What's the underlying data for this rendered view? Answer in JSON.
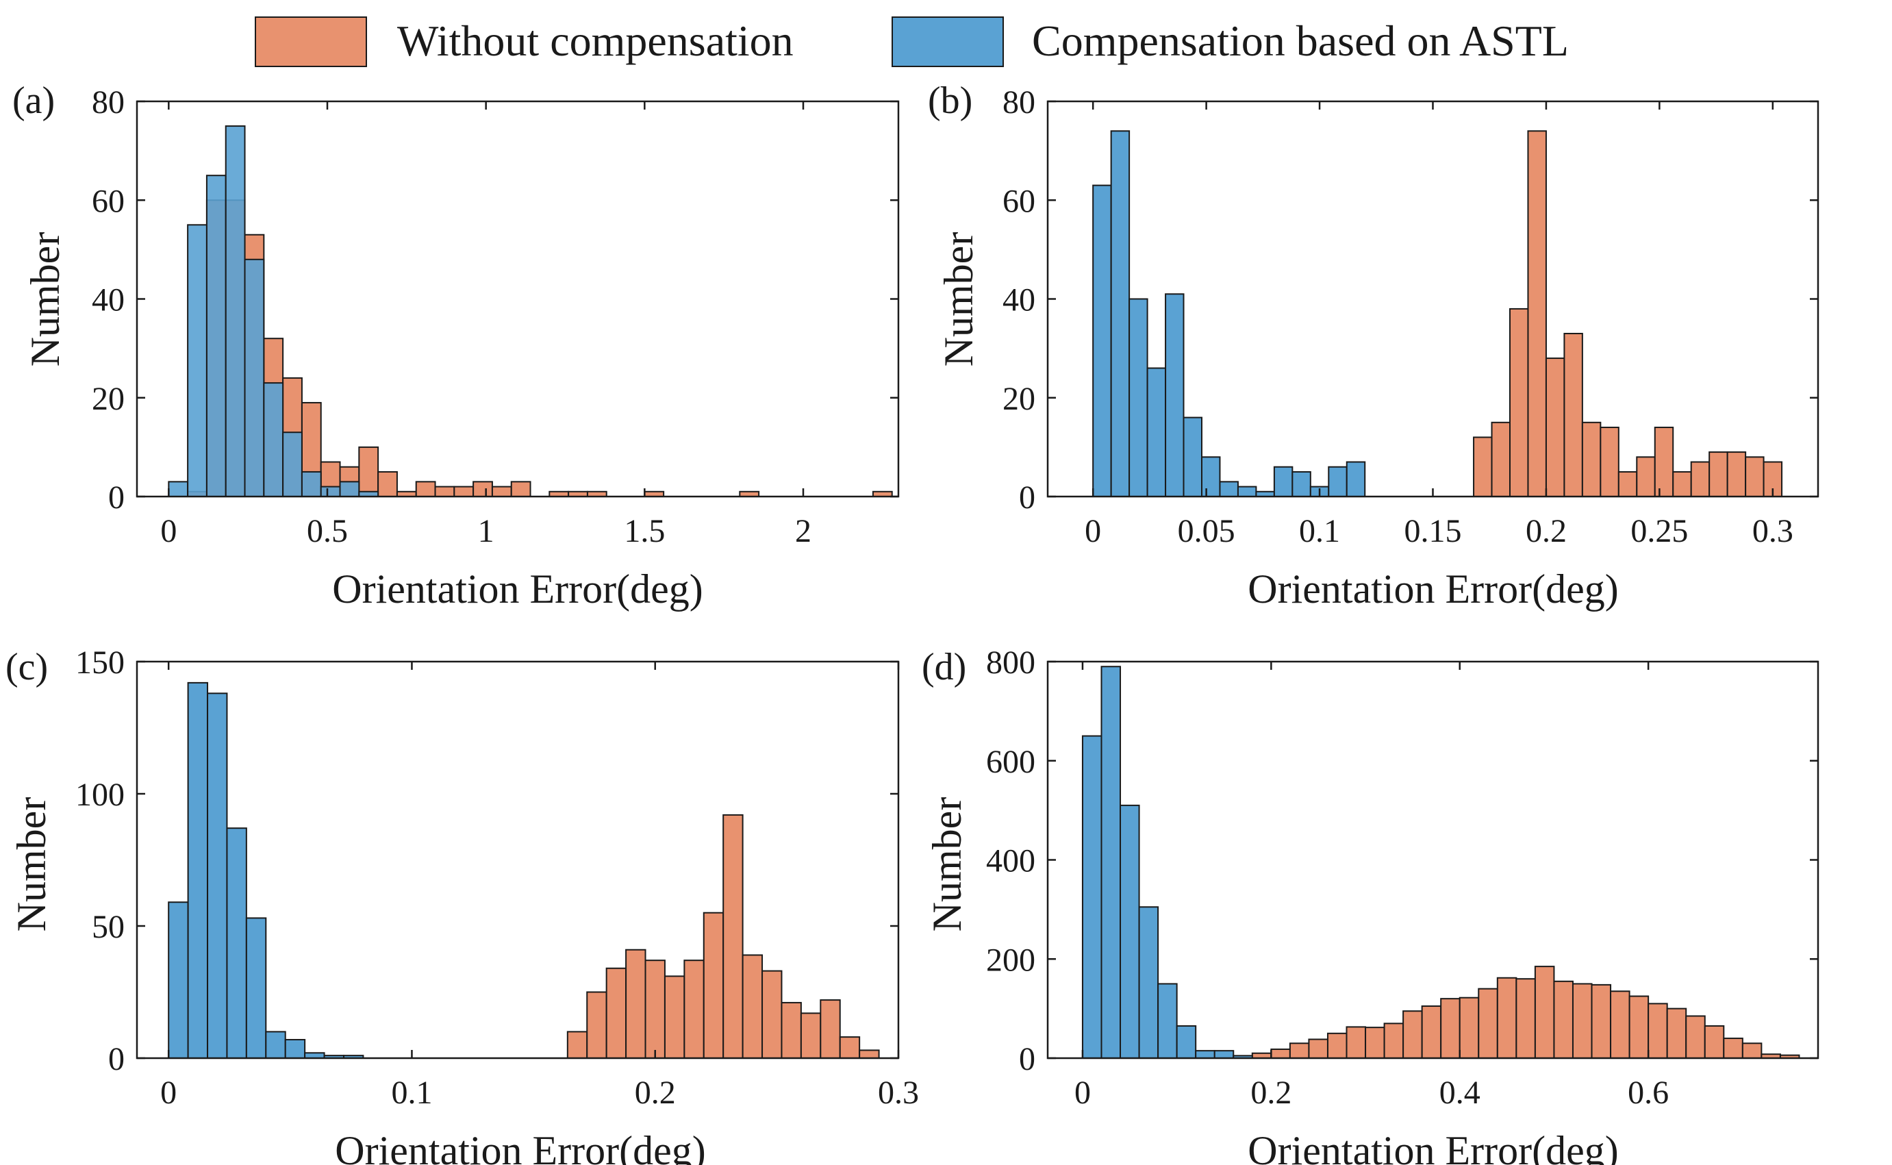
{
  "legend": {
    "location": "top-center",
    "entries": [
      {
        "label": "Without compensation",
        "color": "#E8926F"
      },
      {
        "label": "Compensation based on ASTL",
        "color": "#5AA2D3"
      }
    ]
  },
  "colors": {
    "without": "#E8926F",
    "astl": "#5AA2D3",
    "astl_opacity": 0.9,
    "edge": "#1a1a1a"
  },
  "chart_data": [
    {
      "type": "bar",
      "panel_label": "(a)",
      "xlabel": "Orientation Error(deg)",
      "ylabel": "Number",
      "xlim": [
        -0.1,
        2.3
      ],
      "ylim": [
        0,
        80
      ],
      "xticks": [
        0,
        0.5,
        1,
        1.5,
        2
      ],
      "xtick_labels": [
        "0",
        "0.5",
        "1",
        "1.5",
        "2"
      ],
      "yticks": [
        0,
        20,
        40,
        60,
        80
      ],
      "ytick_labels": [
        "0",
        "20",
        "40",
        "60",
        "80"
      ],
      "grid": false,
      "overlap": true,
      "series": [
        {
          "name": "Without compensation",
          "key": "without",
          "bin_width": 0.06,
          "bin_start": [
            0.0,
            0.06,
            0.12,
            0.18,
            0.24,
            0.3,
            0.36,
            0.42,
            0.48,
            0.54,
            0.6,
            0.66,
            0.72,
            0.78,
            0.84,
            0.9,
            0.96,
            1.02,
            1.08,
            1.2,
            1.26,
            1.32,
            1.5,
            1.8,
            2.22
          ],
          "values": [
            0,
            1,
            60,
            60,
            53,
            32,
            24,
            19,
            7,
            6,
            10,
            5,
            1,
            3,
            2,
            2,
            3,
            2,
            3,
            1,
            1,
            1,
            1,
            1,
            1
          ]
        },
        {
          "name": "Compensation based on ASTL",
          "key": "astl",
          "bin_width": 0.06,
          "bin_start": [
            0.0,
            0.06,
            0.12,
            0.18,
            0.24,
            0.3,
            0.36,
            0.42,
            0.48,
            0.54,
            0.6
          ],
          "values": [
            3,
            55,
            65,
            75,
            48,
            23,
            13,
            5,
            2,
            3,
            1
          ]
        }
      ]
    },
    {
      "type": "bar",
      "panel_label": "(b)",
      "xlabel": "Orientation Error(deg)",
      "ylabel": "Number",
      "xlim": [
        -0.02,
        0.32
      ],
      "ylim": [
        0,
        80
      ],
      "xticks": [
        0,
        0.05,
        0.1,
        0.15,
        0.2,
        0.25,
        0.3
      ],
      "xtick_labels": [
        "0",
        "0.05",
        "0.1",
        "0.15",
        "0.2",
        "0.25",
        "0.3"
      ],
      "yticks": [
        0,
        20,
        40,
        60,
        80
      ],
      "ytick_labels": [
        "0",
        "20",
        "40",
        "60",
        "80"
      ],
      "grid": false,
      "overlap": false,
      "series": [
        {
          "name": "Without compensation",
          "key": "without",
          "bin_width": 0.008,
          "bin_start": [
            0.168,
            0.176,
            0.184,
            0.192,
            0.2,
            0.208,
            0.216,
            0.224,
            0.232,
            0.24,
            0.248,
            0.256,
            0.264,
            0.272,
            0.28,
            0.288,
            0.296
          ],
          "values": [
            12,
            15,
            38,
            74,
            28,
            33,
            15,
            14,
            5,
            8,
            14,
            5,
            7,
            9,
            9,
            8,
            7
          ]
        },
        {
          "name": "Compensation based on ASTL",
          "key": "astl",
          "bin_width": 0.008,
          "bin_start": [
            0.0,
            0.008,
            0.016,
            0.024,
            0.032,
            0.04,
            0.048,
            0.056,
            0.064,
            0.072,
            0.08,
            0.088,
            0.096,
            0.104,
            0.112
          ],
          "values": [
            63,
            74,
            40,
            26,
            41,
            16,
            8,
            3,
            2,
            1,
            6,
            5,
            2,
            6,
            7
          ]
        }
      ]
    },
    {
      "type": "bar",
      "panel_label": "(c)",
      "xlabel": "Orientation Error(deg)",
      "ylabel": "Number",
      "xlim": [
        -0.013,
        0.3
      ],
      "ylim": [
        0,
        150
      ],
      "xticks": [
        0,
        0.1,
        0.2,
        0.3
      ],
      "xtick_labels": [
        "0",
        "0.1",
        "0.2",
        "0.3"
      ],
      "yticks": [
        0,
        50,
        100,
        150
      ],
      "ytick_labels": [
        "0",
        "50",
        "100",
        "150"
      ],
      "grid": false,
      "overlap": false,
      "series": [
        {
          "name": "Without compensation",
          "key": "without",
          "bin_width": 0.008,
          "bin_start": [
            0.164,
            0.172,
            0.18,
            0.188,
            0.196,
            0.204,
            0.212,
            0.22,
            0.228,
            0.236,
            0.244,
            0.252,
            0.26,
            0.268,
            0.276,
            0.284
          ],
          "values": [
            10,
            25,
            34,
            41,
            37,
            31,
            37,
            55,
            92,
            39,
            33,
            21,
            17,
            22,
            8,
            3
          ]
        },
        {
          "name": "Compensation based on ASTL",
          "key": "astl",
          "bin_width": 0.008,
          "bin_start": [
            0.0,
            0.008,
            0.016,
            0.024,
            0.032,
            0.04,
            0.048,
            0.056,
            0.064,
            0.072
          ],
          "values": [
            59,
            142,
            138,
            87,
            53,
            10,
            7,
            2,
            1,
            1
          ]
        }
      ]
    },
    {
      "type": "bar",
      "panel_label": "(d)",
      "xlabel": "Orientation Error(deg)",
      "ylabel": "Number",
      "xlim": [
        -0.037,
        0.78
      ],
      "ylim": [
        0,
        800
      ],
      "xticks": [
        0,
        0.2,
        0.4,
        0.6
      ],
      "xtick_labels": [
        "0",
        "0.2",
        "0.4",
        "0.6"
      ],
      "yticks": [
        0,
        200,
        400,
        600,
        800
      ],
      "ytick_labels": [
        "0",
        "200",
        "400",
        "600",
        "800"
      ],
      "grid": false,
      "overlap": false,
      "series": [
        {
          "name": "Without compensation",
          "key": "without",
          "bin_width": 0.02,
          "bin_start": [
            0.18,
            0.2,
            0.22,
            0.24,
            0.26,
            0.28,
            0.3,
            0.32,
            0.34,
            0.36,
            0.38,
            0.4,
            0.42,
            0.44,
            0.46,
            0.48,
            0.5,
            0.52,
            0.54,
            0.56,
            0.58,
            0.6,
            0.62,
            0.64,
            0.66,
            0.68,
            0.7,
            0.72,
            0.74
          ],
          "values": [
            10,
            18,
            30,
            38,
            50,
            63,
            62,
            70,
            95,
            105,
            120,
            122,
            140,
            162,
            160,
            185,
            155,
            150,
            148,
            135,
            125,
            110,
            100,
            85,
            65,
            40,
            30,
            8,
            6
          ]
        },
        {
          "name": "Compensation based on ASTL",
          "key": "astl",
          "bin_width": 0.02,
          "bin_start": [
            0.0,
            0.02,
            0.04,
            0.06,
            0.08,
            0.1,
            0.12,
            0.14,
            0.16
          ],
          "values": [
            650,
            790,
            510,
            305,
            150,
            65,
            15,
            15,
            5
          ]
        }
      ]
    }
  ]
}
